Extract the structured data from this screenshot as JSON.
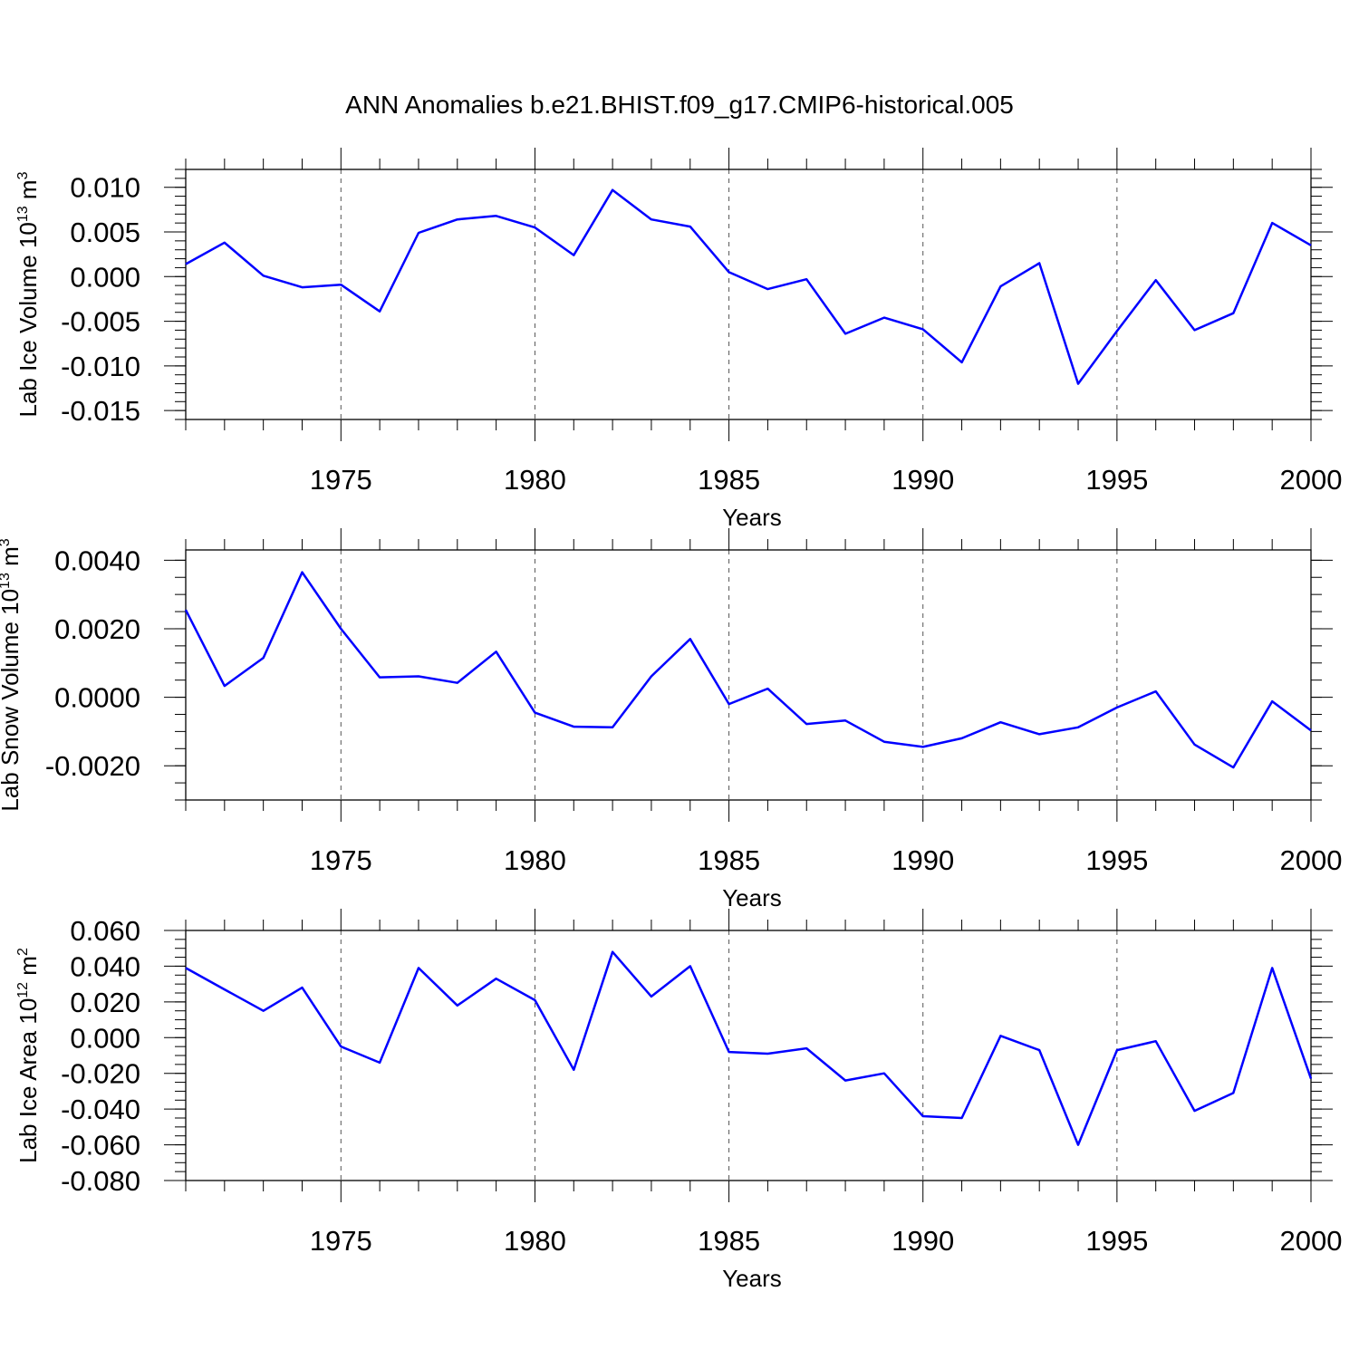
{
  "figure_title": "ANN Anomalies b.e21.BHIST.f09_g17.CMIP6-historical.005",
  "line_color": "#0000ff",
  "chart_data": [
    {
      "type": "line",
      "ylabel_main": "Lab Ice Volume 10",
      "ylabel_exp": "13",
      "ylabel_unit": " m",
      "ylabel_unit_exp": "3",
      "xlabel": "Years",
      "xlim": [
        1971,
        2000
      ],
      "ylim": [
        -0.016,
        0.012
      ],
      "yticks": [
        {
          "v": 0.01,
          "label": "0.010"
        },
        {
          "v": 0.005,
          "label": "0.005"
        },
        {
          "v": 0.0,
          "label": "0.000"
        },
        {
          "v": -0.005,
          "label": "-0.005"
        },
        {
          "v": -0.01,
          "label": "-0.010"
        },
        {
          "v": -0.015,
          "label": "-0.015"
        }
      ],
      "yminor_step": 0.001,
      "xticks": [
        {
          "v": 1975,
          "label": "1975"
        },
        {
          "v": 1980,
          "label": "1980"
        },
        {
          "v": 1985,
          "label": "1985"
        },
        {
          "v": 1990,
          "label": "1990"
        },
        {
          "v": 1995,
          "label": "1995"
        },
        {
          "v": 2000,
          "label": "2000"
        }
      ],
      "x": [
        1971,
        1972,
        1973,
        1974,
        1975,
        1976,
        1977,
        1978,
        1979,
        1980,
        1981,
        1982,
        1983,
        1984,
        1985,
        1986,
        1987,
        1988,
        1989,
        1990,
        1991,
        1992,
        1993,
        1994,
        1995,
        1996,
        1997,
        1998,
        1999,
        2000
      ],
      "y": [
        0.0014,
        0.0038,
        0.0001,
        -0.0012,
        -0.0009,
        -0.0039,
        0.0049,
        0.0064,
        0.0068,
        0.0055,
        0.0024,
        0.0097,
        0.0064,
        0.0056,
        0.0005,
        -0.0014,
        -0.0003,
        -0.0064,
        -0.0046,
        -0.0059,
        -0.0096,
        -0.0011,
        0.0015,
        -0.012,
        -0.0061,
        -0.0004,
        -0.006,
        -0.0041,
        0.006,
        0.0035
      ]
    },
    {
      "type": "line",
      "ylabel_main": "Lab Snow Volume 10",
      "ylabel_exp": "13",
      "ylabel_unit": " m",
      "ylabel_unit_exp": "3",
      "xlabel": "Years",
      "xlim": [
        1971,
        2000
      ],
      "ylim": [
        -0.003,
        0.0043
      ],
      "yticks": [
        {
          "v": 0.004,
          "label": "0.0040"
        },
        {
          "v": 0.002,
          "label": "0.0020"
        },
        {
          "v": 0.0,
          "label": "0.0000"
        },
        {
          "v": -0.002,
          "label": "-0.0020"
        }
      ],
      "yminor_step": 0.0005,
      "xticks": [
        {
          "v": 1975,
          "label": "1975"
        },
        {
          "v": 1980,
          "label": "1980"
        },
        {
          "v": 1985,
          "label": "1985"
        },
        {
          "v": 1990,
          "label": "1990"
        },
        {
          "v": 1995,
          "label": "1995"
        },
        {
          "v": 2000,
          "label": "2000"
        }
      ],
      "x": [
        1971,
        1972,
        1973,
        1974,
        1975,
        1976,
        1977,
        1978,
        1979,
        1980,
        1981,
        1982,
        1983,
        1984,
        1985,
        1986,
        1987,
        1988,
        1989,
        1990,
        1991,
        1992,
        1993,
        1994,
        1995,
        1996,
        1997,
        1998,
        1999,
        2000
      ],
      "y": [
        0.00255,
        0.00033,
        0.00115,
        0.00365,
        0.002,
        0.00058,
        0.00061,
        0.00042,
        0.00133,
        -0.00045,
        -0.00086,
        -0.00088,
        0.00061,
        0.0017,
        -0.0002,
        0.00025,
        -0.00078,
        -0.00068,
        -0.0013,
        -0.00145,
        -0.0012,
        -0.00073,
        -0.00108,
        -0.00088,
        -0.0003,
        0.00017,
        -0.00138,
        -0.00205,
        -0.00012,
        -0.00097
      ]
    },
    {
      "type": "line",
      "ylabel_main": "Lab Ice Area 10",
      "ylabel_exp": "12",
      "ylabel_unit": " m",
      "ylabel_unit_exp": "2",
      "xlabel": "Years",
      "xlim": [
        1971,
        2000
      ],
      "ylim": [
        -0.08,
        0.06
      ],
      "yticks": [
        {
          "v": 0.06,
          "label": "0.060"
        },
        {
          "v": 0.04,
          "label": "0.040"
        },
        {
          "v": 0.02,
          "label": "0.020"
        },
        {
          "v": 0.0,
          "label": "0.000"
        },
        {
          "v": -0.02,
          "label": "-0.020"
        },
        {
          "v": -0.04,
          "label": "-0.040"
        },
        {
          "v": -0.06,
          "label": "-0.060"
        },
        {
          "v": -0.08,
          "label": "-0.080"
        }
      ],
      "yminor_step": 0.005,
      "xticks": [
        {
          "v": 1975,
          "label": "1975"
        },
        {
          "v": 1980,
          "label": "1980"
        },
        {
          "v": 1985,
          "label": "1985"
        },
        {
          "v": 1990,
          "label": "1990"
        },
        {
          "v": 1995,
          "label": "1995"
        },
        {
          "v": 2000,
          "label": "2000"
        }
      ],
      "x": [
        1971,
        1972,
        1973,
        1974,
        1975,
        1976,
        1977,
        1978,
        1979,
        1980,
        1981,
        1982,
        1983,
        1984,
        1985,
        1986,
        1987,
        1988,
        1989,
        1990,
        1991,
        1992,
        1993,
        1994,
        1995,
        1996,
        1997,
        1998,
        1999,
        2000
      ],
      "y": [
        0.039,
        0.027,
        0.015,
        0.028,
        -0.005,
        -0.014,
        0.039,
        0.018,
        0.033,
        0.021,
        -0.018,
        0.048,
        0.023,
        0.04,
        -0.008,
        -0.009,
        -0.006,
        -0.024,
        -0.02,
        -0.044,
        -0.045,
        0.001,
        -0.007,
        -0.06,
        -0.007,
        -0.002,
        -0.041,
        -0.031,
        0.039,
        -0.023
      ]
    }
  ]
}
